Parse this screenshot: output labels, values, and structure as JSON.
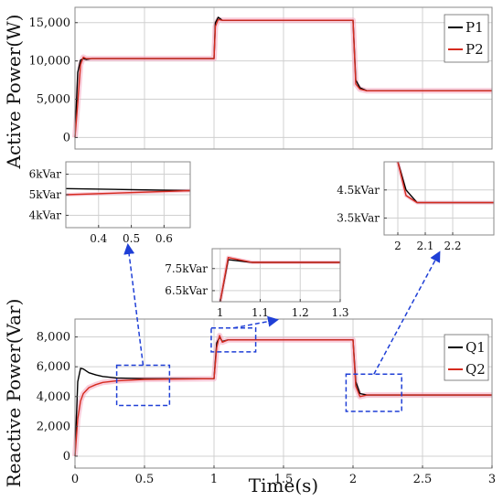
{
  "chart_data": [
    {
      "type": "line",
      "ylabel": "Active Power(W)",
      "xlim": [
        0,
        3
      ],
      "ylim": [
        -1500,
        17000
      ],
      "yticks": [
        0,
        5000,
        10000,
        15000
      ],
      "ytick_labels": [
        "0",
        "5,000",
        "10,000",
        "15,000"
      ],
      "grid": true,
      "legend": "top-right",
      "series": [
        {
          "name": "P1",
          "color": "#000000",
          "x": [
            0,
            0.02,
            0.04,
            0.06,
            0.08,
            0.12,
            0.2,
            0.5,
            0.99,
            1.0,
            1.01,
            1.03,
            1.06,
            1.1,
            1.5,
            1.99,
            2.0,
            2.02,
            2.05,
            2.1,
            2.5,
            3.0
          ],
          "y": [
            0,
            8500,
            10100,
            10300,
            10200,
            10300,
            10300,
            10300,
            10300,
            10300,
            15000,
            15700,
            15300,
            15300,
            15300,
            15300,
            15300,
            7500,
            6500,
            6100,
            6100,
            6100
          ]
        },
        {
          "name": "P2",
          "color": "#d62b1f",
          "x": [
            0,
            0.02,
            0.04,
            0.06,
            0.08,
            0.12,
            0.2,
            0.5,
            0.99,
            1.0,
            1.01,
            1.03,
            1.06,
            1.1,
            1.5,
            1.99,
            2.0,
            2.02,
            2.05,
            2.1,
            2.5,
            3.0
          ],
          "y": [
            0,
            4500,
            9500,
            10500,
            10300,
            10300,
            10300,
            10300,
            10300,
            10300,
            14500,
            15400,
            15300,
            15300,
            15300,
            15300,
            15300,
            7000,
            6300,
            6100,
            6100,
            6100
          ]
        }
      ]
    },
    {
      "type": "line",
      "xlabel": "Time(s)",
      "ylabel": "Reactive Power(Var)",
      "xlim": [
        0,
        3
      ],
      "ylim": [
        -800,
        9200
      ],
      "xticks": [
        0,
        0.5,
        1,
        1.5,
        2,
        2.5,
        3
      ],
      "xtick_labels": [
        "0",
        "0.5",
        "1",
        "1.5",
        "2",
        "2.5",
        "3"
      ],
      "yticks": [
        0,
        2000,
        4000,
        6000,
        8000
      ],
      "ytick_labels": [
        "0",
        "2,000",
        "4,000",
        "6,000",
        "8,000"
      ],
      "grid": true,
      "legend": "top-right",
      "series": [
        {
          "name": "Q1",
          "color": "#000000",
          "x": [
            0,
            0.02,
            0.04,
            0.06,
            0.1,
            0.15,
            0.2,
            0.3,
            0.5,
            0.99,
            1.0,
            1.02,
            1.04,
            1.06,
            1.1,
            1.5,
            1.99,
            2.0,
            2.02,
            2.05,
            2.1,
            2.5,
            3.0
          ],
          "y": [
            0,
            5000,
            5900,
            5850,
            5600,
            5450,
            5350,
            5250,
            5200,
            5200,
            5200,
            7600,
            8000,
            7700,
            7800,
            7800,
            7800,
            7800,
            5000,
            4200,
            4100,
            4100,
            4100
          ]
        },
        {
          "name": "Q2",
          "color": "#d62b1f",
          "x": [
            0,
            0.02,
            0.04,
            0.06,
            0.1,
            0.15,
            0.2,
            0.3,
            0.5,
            0.99,
            1.0,
            1.02,
            1.04,
            1.06,
            1.1,
            1.5,
            1.99,
            2.0,
            2.02,
            2.05,
            2.1,
            2.5,
            3.0
          ],
          "y": [
            0,
            2500,
            3700,
            4200,
            4600,
            4800,
            4950,
            5050,
            5150,
            5200,
            5200,
            7300,
            8100,
            7650,
            7800,
            7800,
            7800,
            7800,
            4700,
            4000,
            4100,
            4100,
            4100
          ]
        }
      ]
    },
    {
      "type": "line",
      "xlim": [
        0.3,
        0.68
      ],
      "ylim": [
        3400,
        6600
      ],
      "xticks": [
        0.4,
        0.5,
        0.6
      ],
      "xtick_labels": [
        "0.4",
        "0.5",
        "0.6"
      ],
      "yticks": [
        6000,
        5000,
        4000
      ],
      "ytick_labels": [
        "6kVar",
        "5kVar",
        "4kVar"
      ],
      "grid": true,
      "series": [
        {
          "name": "",
          "color": "#000000",
          "x": [
            0.3,
            0.68
          ],
          "y": [
            5300,
            5200
          ]
        },
        {
          "name": "",
          "color": "#d62b1f",
          "x": [
            0.3,
            0.68
          ],
          "y": [
            5000,
            5200
          ]
        }
      ]
    },
    {
      "type": "line",
      "xlim": [
        0.98,
        1.3
      ],
      "ylim": [
        6000,
        8400
      ],
      "xticks": [
        1,
        1.1,
        1.2,
        1.3
      ],
      "xtick_labels": [
        "1",
        "1.1",
        "1.2",
        "1.3"
      ],
      "yticks": [
        7500,
        6500
      ],
      "ytick_labels": [
        "7.5kVar",
        "6.5kVar"
      ],
      "grid": true,
      "series": [
        {
          "name": "",
          "color": "#000000",
          "x": [
            1.0,
            1.02,
            1.08,
            1.3
          ],
          "y": [
            6000,
            7900,
            7780,
            7780
          ]
        },
        {
          "name": "",
          "color": "#d62b1f",
          "x": [
            1.0,
            1.02,
            1.08,
            1.3
          ],
          "y": [
            6000,
            8000,
            7780,
            7780
          ]
        }
      ]
    },
    {
      "type": "line",
      "xlim": [
        1.95,
        2.35
      ],
      "ylim": [
        2900,
        5500
      ],
      "xticks": [
        2,
        2.1,
        2.2
      ],
      "xtick_labels": [
        "2",
        "2.1",
        "2.2"
      ],
      "yticks": [
        4500,
        3500
      ],
      "ytick_labels": [
        "4.5kVar",
        "3.5kVar"
      ],
      "grid": true,
      "series": [
        {
          "name": "",
          "color": "#000000",
          "x": [
            2.0,
            2.03,
            2.07,
            2.35
          ],
          "y": [
            5500,
            4500,
            4050,
            4050
          ]
        },
        {
          "name": "",
          "color": "#d62b1f",
          "x": [
            2.0,
            2.03,
            2.07,
            2.35
          ],
          "y": [
            5500,
            4300,
            4050,
            4050
          ]
        }
      ]
    }
  ]
}
